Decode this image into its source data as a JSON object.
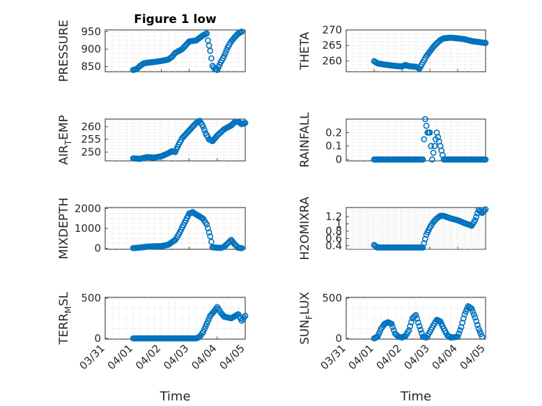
{
  "title": "Figure 1 low",
  "marker_color": "#0072BD",
  "chart_data": [
    {
      "type": "scatter",
      "ylabel": "PRESSURE",
      "ylabel_sub": "",
      "ylabel_tail": "",
      "xlabel": "",
      "show_xticklabels": false,
      "title": "Figure 1 low",
      "ylim": [
        835,
        955
      ],
      "yticks": [
        850,
        900,
        950
      ],
      "yticklabels": [
        "850",
        "900",
        "950"
      ],
      "xlim": [
        "03/31",
        "04/05"
      ],
      "points": [
        [
          "04/01 00:00",
          840
        ],
        [
          "04/01 03:00",
          843
        ],
        [
          "04/01 06:00",
          852
        ],
        [
          "04/01 09:00",
          859
        ],
        [
          "04/01 12:00",
          861
        ],
        [
          "04/01 18:00",
          863
        ],
        [
          "04/02 00:00",
          866
        ],
        [
          "04/02 06:00",
          870
        ],
        [
          "04/02 09:00",
          877
        ],
        [
          "04/02 12:00",
          889
        ],
        [
          "04/02 18:00",
          900
        ],
        [
          "04/03 00:00",
          922
        ],
        [
          "04/03 06:00",
          925
        ],
        [
          "04/03 12:00",
          940
        ],
        [
          "04/03 15:00",
          945
        ],
        [
          "04/03 16:00",
          925
        ],
        [
          "04/03 18:00",
          895
        ],
        [
          "04/03 20:00",
          852
        ],
        [
          "04/03 22:00",
          843
        ],
        [
          "04/04 00:00",
          840
        ],
        [
          "04/04 03:00",
          862
        ],
        [
          "04/04 06:00",
          880
        ],
        [
          "04/04 09:00",
          905
        ],
        [
          "04/04 12:00",
          922
        ],
        [
          "04/04 15:00",
          934
        ],
        [
          "04/04 18:00",
          945
        ],
        [
          "04/04 21:00",
          950
        ]
      ]
    },
    {
      "type": "scatter",
      "ylabel": "THETA",
      "ylabel_sub": "",
      "ylabel_tail": "",
      "xlabel": "",
      "show_xticklabels": false,
      "title": "",
      "ylim": [
        256.5,
        270
      ],
      "yticks": [
        260,
        265,
        270
      ],
      "yticklabels": [
        "260",
        "265",
        "270"
      ],
      "xlim": [
        "03/31",
        "04/05"
      ],
      "points": [
        [
          "04/01 00:00",
          259.9
        ],
        [
          "04/01 03:00",
          259.2
        ],
        [
          "04/01 09:00",
          258.8
        ],
        [
          "04/01 18:00",
          258.4
        ],
        [
          "04/02 00:00",
          258.2
        ],
        [
          "04/02 03:00",
          258.7
        ],
        [
          "04/02 06:00",
          258.3
        ],
        [
          "04/02 12:00",
          258.1
        ],
        [
          "04/02 15:00",
          257.5
        ],
        [
          "04/02 18:00",
          259.5
        ],
        [
          "04/02 21:00",
          261.5
        ],
        [
          "04/03 00:00",
          263.0
        ],
        [
          "04/03 03:00",
          264.5
        ],
        [
          "04/03 06:00",
          265.7
        ],
        [
          "04/03 09:00",
          266.7
        ],
        [
          "04/03 12:00",
          267.3
        ],
        [
          "04/03 18:00",
          267.5
        ],
        [
          "04/04 00:00",
          267.3
        ],
        [
          "04/04 06:00",
          267.0
        ],
        [
          "04/04 12:00",
          266.4
        ],
        [
          "04/04 18:00",
          266.1
        ],
        [
          "04/05 00:00",
          265.8
        ]
      ]
    },
    {
      "type": "scatter",
      "ylabel": "AIR",
      "ylabel_sub": "T",
      "ylabel_tail": "EMP",
      "xlabel": "",
      "show_xticklabels": false,
      "title": "",
      "ylim": [
        246.5,
        263
      ],
      "yticks": [
        250,
        255,
        260
      ],
      "yticklabels": [
        "250",
        "255",
        "260"
      ],
      "xlim": [
        "03/31",
        "04/05"
      ],
      "points": [
        [
          "04/01 00:00",
          247.5
        ],
        [
          "04/01 06:00",
          247.3
        ],
        [
          "04/01 12:00",
          248.0
        ],
        [
          "04/01 18:00",
          247.8
        ],
        [
          "04/02 00:00",
          248.3
        ],
        [
          "04/02 06:00",
          249.5
        ],
        [
          "04/02 09:00",
          250.3
        ],
        [
          "04/02 12:00",
          250.0
        ],
        [
          "04/02 15:00",
          253.0
        ],
        [
          "04/02 18:00",
          255.5
        ],
        [
          "04/02 21:00",
          257.0
        ],
        [
          "04/03 00:00",
          258.5
        ],
        [
          "04/03 03:00",
          260.0
        ],
        [
          "04/03 06:00",
          261.5
        ],
        [
          "04/03 09:00",
          262.3
        ],
        [
          "04/03 12:00",
          260.0
        ],
        [
          "04/03 14:00",
          257.5
        ],
        [
          "04/03 17:00",
          255.0
        ],
        [
          "04/03 20:00",
          254.3
        ],
        [
          "04/04 00:00",
          256.5
        ],
        [
          "04/04 06:00",
          259.0
        ],
        [
          "04/04 12:00",
          260.5
        ],
        [
          "04/04 15:00",
          261.8
        ],
        [
          "04/04 18:00",
          262.0
        ],
        [
          "04/04 21:00",
          261.0
        ],
        [
          "04/05 00:00",
          261.5
        ]
      ]
    },
    {
      "type": "scatter",
      "ylabel": "RAINFALL",
      "ylabel_sub": "",
      "ylabel_tail": "",
      "xlabel": "",
      "show_xticklabels": false,
      "title": "",
      "ylim": [
        -0.01,
        0.3
      ],
      "yticks": [
        0,
        0.1,
        0.2
      ],
      "yticklabels": [
        "0",
        "0.1",
        "0.2"
      ],
      "xlim": [
        "03/31",
        "04/05"
      ],
      "points": [
        [
          "04/01 00:00",
          0
        ],
        [
          "04/01 12:00",
          0
        ],
        [
          "04/02 00:00",
          0
        ],
        [
          "04/02 12:00",
          0
        ],
        [
          "04/02 18:00",
          0
        ],
        [
          "04/02 20:00",
          0.3
        ],
        [
          "04/02 22:00",
          0.2
        ],
        [
          "04/03 00:00",
          0.2
        ],
        [
          "04/03 06:00",
          0.2
        ],
        [
          "04/03 02:00",
          0
        ],
        [
          "04/03 12:00",
          0
        ],
        [
          "04/04 00:00",
          0
        ],
        [
          "04/04 12:00",
          0
        ],
        [
          "04/05 00:00",
          0
        ]
      ]
    },
    {
      "type": "scatter",
      "ylabel": "MIXDEPTH",
      "ylabel_sub": "",
      "ylabel_tail": "",
      "xlabel": "",
      "show_xticklabels": false,
      "title": "",
      "ylim": [
        -50,
        2050
      ],
      "yticks": [
        0,
        1000,
        2000
      ],
      "yticklabels": [
        "0",
        "1000",
        "2000"
      ],
      "xlim": [
        "03/31",
        "04/05"
      ],
      "points": [
        [
          "04/01 00:00",
          10
        ],
        [
          "04/01 06:00",
          40
        ],
        [
          "04/01 12:00",
          80
        ],
        [
          "04/01 18:00",
          100
        ],
        [
          "04/02 00:00",
          110
        ],
        [
          "04/02 06:00",
          180
        ],
        [
          "04/02 09:00",
          300
        ],
        [
          "04/02 12:00",
          420
        ],
        [
          "04/02 15:00",
          700
        ],
        [
          "04/02 18:00",
          1050
        ],
        [
          "04/02 21:00",
          1400
        ],
        [
          "04/03 00:00",
          1750
        ],
        [
          "04/03 03:00",
          1820
        ],
        [
          "04/03 06:00",
          1700
        ],
        [
          "04/03 09:00",
          1600
        ],
        [
          "04/03 12:00",
          1480
        ],
        [
          "04/03 15:00",
          1200
        ],
        [
          "04/03 18:00",
          600
        ],
        [
          "04/03 20:00",
          50
        ],
        [
          "04/04 00:00",
          30
        ],
        [
          "04/04 03:00",
          20
        ],
        [
          "04/04 06:00",
          80
        ],
        [
          "04/04 09:00",
          250
        ],
        [
          "04/04 12:00",
          420
        ],
        [
          "04/04 15:00",
          200
        ],
        [
          "04/04 18:00",
          30
        ],
        [
          "04/04 21:00",
          10
        ]
      ]
    },
    {
      "type": "scatter",
      "ylabel": "H2OMIXRA",
      "ylabel_sub": "",
      "ylabel_tail": "",
      "xlabel": "",
      "show_xticklabels": false,
      "title": "",
      "ylim": [
        0.3,
        1.45
      ],
      "yticks": [
        0.4,
        0.6,
        0.8,
        1,
        1.2
      ],
      "yticklabels": [
        "0.4",
        "0.6",
        "0.8",
        "1",
        "1.2"
      ],
      "xlim": [
        "03/31",
        "04/05"
      ],
      "points": [
        [
          "04/01 00:00",
          0.42
        ],
        [
          "04/01 03:00",
          0.35
        ],
        [
          "04/01 12:00",
          0.35
        ],
        [
          "04/02 00:00",
          0.35
        ],
        [
          "04/02 12:00",
          0.35
        ],
        [
          "04/02 18:00",
          0.35
        ],
        [
          "04/02 21:00",
          0.7
        ],
        [
          "04/03 00:00",
          0.9
        ],
        [
          "04/03 03:00",
          1.05
        ],
        [
          "04/03 06:00",
          1.15
        ],
        [
          "04/03 09:00",
          1.22
        ],
        [
          "04/03 12:00",
          1.22
        ],
        [
          "04/03 18:00",
          1.15
        ],
        [
          "04/04 00:00",
          1.1
        ],
        [
          "04/04 06:00",
          1.02
        ],
        [
          "04/04 12:00",
          0.95
        ],
        [
          "04/04 15:00",
          1.1
        ],
        [
          "04/04 18:00",
          1.38
        ],
        [
          "04/04 21:00",
          1.3
        ],
        [
          "04/05 00:00",
          1.4
        ]
      ]
    },
    {
      "type": "scatter",
      "ylabel": "TERR",
      "ylabel_sub": "M",
      "ylabel_tail": "SL",
      "xlabel": "Time",
      "show_xticklabels": true,
      "title": "",
      "ylim": [
        -10,
        510
      ],
      "yticks": [
        0,
        500
      ],
      "yticklabels": [
        "0",
        "500"
      ],
      "xlim": [
        "03/31",
        "04/05"
      ],
      "points": [
        [
          "04/01 00:00",
          0
        ],
        [
          "04/01 12:00",
          0
        ],
        [
          "04/02 00:00",
          0
        ],
        [
          "04/02 12:00",
          0
        ],
        [
          "04/03 00:00",
          0
        ],
        [
          "04/03 06:00",
          0
        ],
        [
          "04/03 09:00",
          20
        ],
        [
          "04/03 12:00",
          80
        ],
        [
          "04/03 15:00",
          180
        ],
        [
          "04/03 18:00",
          280
        ],
        [
          "04/03 21:00",
          330
        ],
        [
          "04/04 00:00",
          390
        ],
        [
          "04/04 03:00",
          320
        ],
        [
          "04/04 06:00",
          270
        ],
        [
          "04/04 12:00",
          250
        ],
        [
          "04/04 18:00",
          300
        ],
        [
          "04/04 21:00",
          220
        ],
        [
          "04/05 00:00",
          280
        ]
      ]
    },
    {
      "type": "scatter",
      "ylabel": "SUN",
      "ylabel_sub": "F",
      "ylabel_tail": "LUX",
      "xlabel": "Time",
      "show_xticklabels": true,
      "title": "",
      "ylim": [
        -10,
        510
      ],
      "yticks": [
        0,
        500
      ],
      "yticklabels": [
        "0",
        "500"
      ],
      "xlim": [
        "03/31",
        "04/05"
      ],
      "points": [
        [
          "04/01 00:00",
          0
        ],
        [
          "04/01 03:00",
          20
        ],
        [
          "04/01 06:00",
          120
        ],
        [
          "04/01 09:00",
          180
        ],
        [
          "04/01 12:00",
          200
        ],
        [
          "04/01 15:00",
          180
        ],
        [
          "04/01 18:00",
          60
        ],
        [
          "04/01 21:00",
          20
        ],
        [
          "04/02 00:00",
          10
        ],
        [
          "04/02 03:00",
          30
        ],
        [
          "04/02 06:00",
          100
        ],
        [
          "04/02 09:00",
          250
        ],
        [
          "04/02 12:00",
          290
        ],
        [
          "04/02 15:00",
          150
        ],
        [
          "04/02 18:00",
          20
        ],
        [
          "04/02 21:00",
          10
        ],
        [
          "04/03 00:00",
          80
        ],
        [
          "04/03 03:00",
          160
        ],
        [
          "04/03 06:00",
          230
        ],
        [
          "04/03 09:00",
          210
        ],
        [
          "04/03 12:00",
          120
        ],
        [
          "04/03 15:00",
          40
        ],
        [
          "04/03 18:00",
          10
        ],
        [
          "04/04 00:00",
          20
        ],
        [
          "04/04 03:00",
          140
        ],
        [
          "04/04 06:00",
          300
        ],
        [
          "04/04 09:00",
          400
        ],
        [
          "04/04 12:00",
          370
        ],
        [
          "04/04 15:00",
          260
        ],
        [
          "04/04 18:00",
          120
        ],
        [
          "04/04 21:00",
          20
        ]
      ]
    }
  ],
  "xticklabels": [
    "03/31",
    "04/01",
    "04/02",
    "04/03",
    "04/04",
    "04/05"
  ]
}
